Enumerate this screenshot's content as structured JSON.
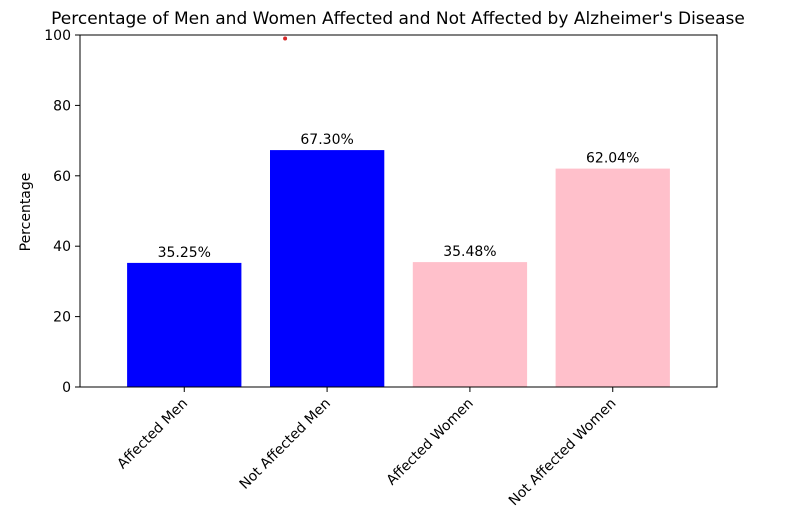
{
  "chart_data": {
    "type": "bar",
    "title": "Percentage of Men and Women Affected and Not Affected by Alzheimer's Disease",
    "xlabel": "",
    "ylabel": "Percentage",
    "ylim": [
      0,
      100
    ],
    "yticks": [
      0,
      20,
      40,
      60,
      80,
      100
    ],
    "grid": false,
    "categories": [
      "Affected Men",
      "Not Affected Men",
      "Affected Women",
      "Not Affected Women"
    ],
    "values": [
      35.25,
      67.3,
      35.48,
      62.04
    ],
    "data_labels": [
      "35.25%",
      "67.30%",
      "35.48%",
      "62.04%"
    ],
    "colors": [
      "#0000ff",
      "#0000ff",
      "#ffc0cb",
      "#ffc0cb"
    ],
    "marker_color": "#d62728",
    "marker_value": {
      "x": "Not Affected Men",
      "y": 99
    }
  }
}
